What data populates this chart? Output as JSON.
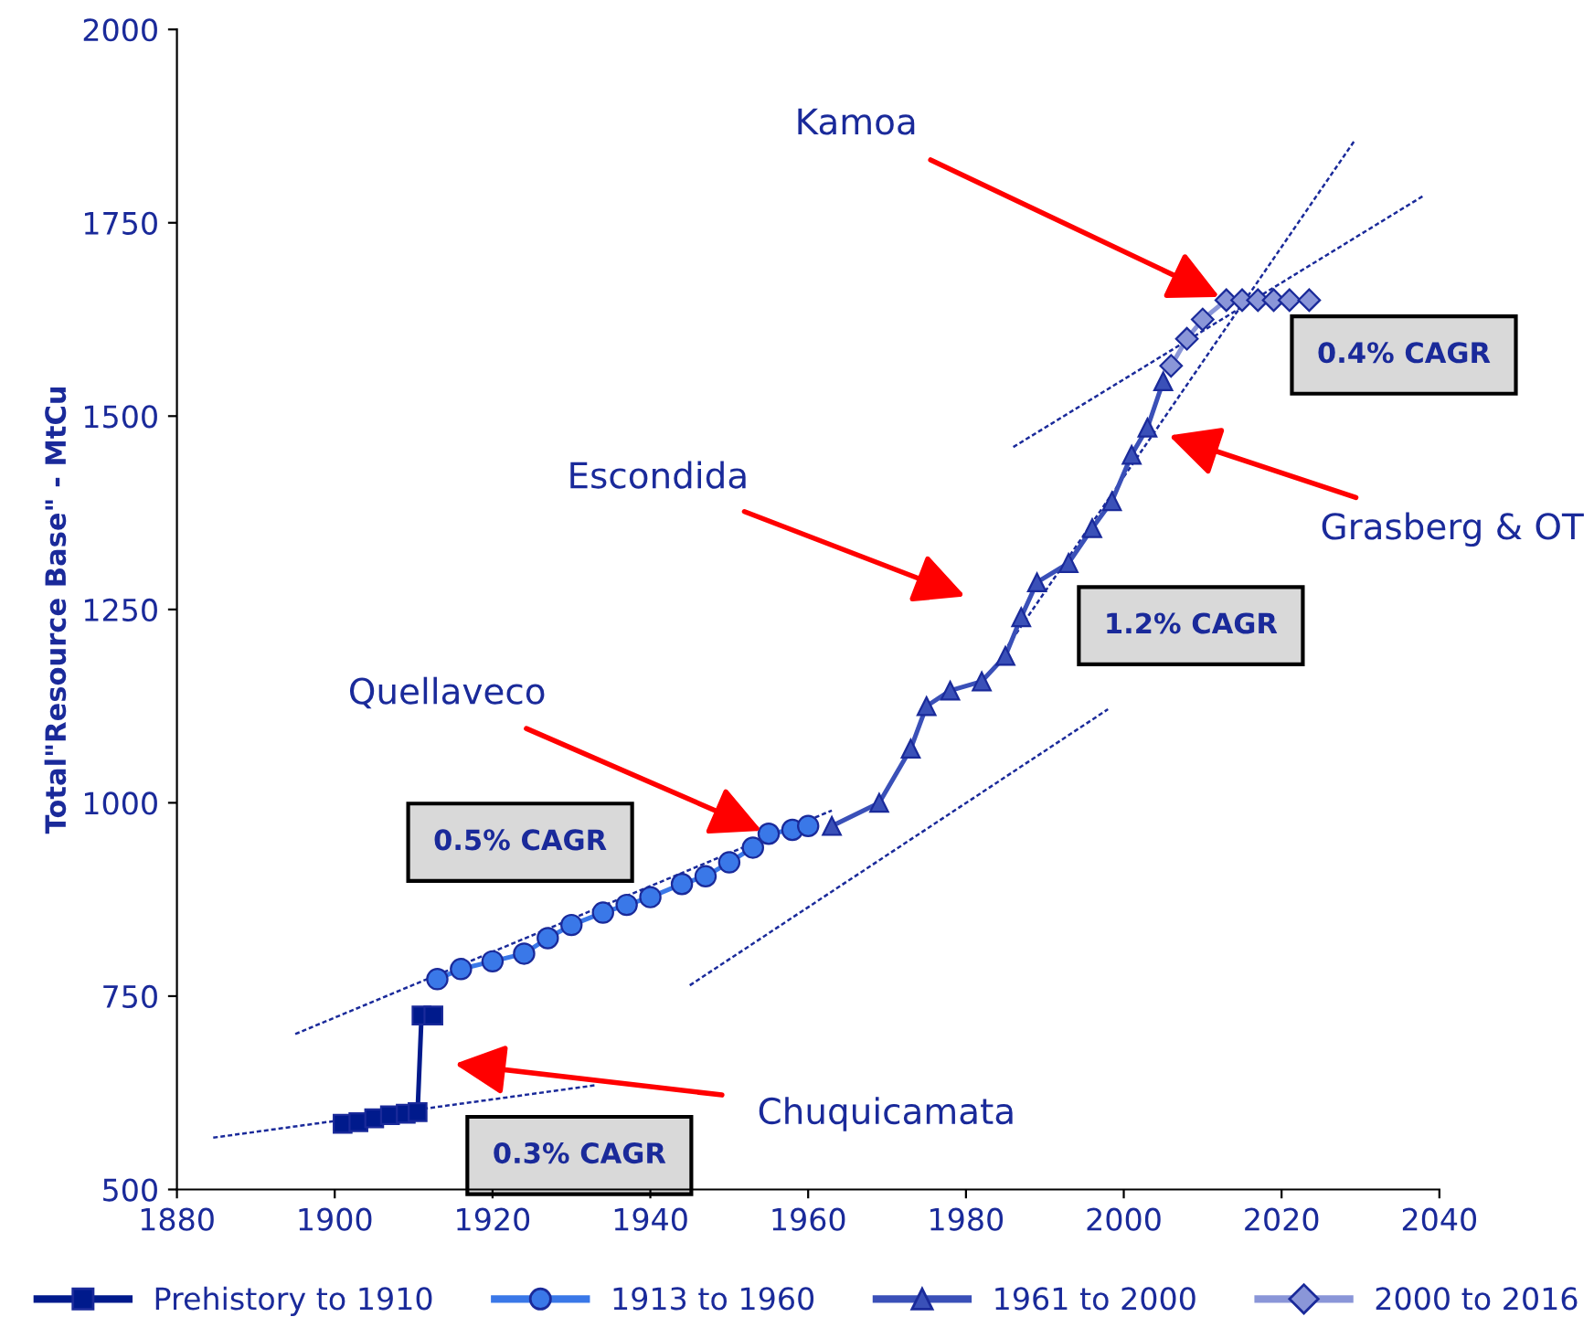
{
  "chart_data": {
    "type": "line",
    "ylabel": "Total\"Resource Base\" - MtCu",
    "xlim": [
      1880,
      2040
    ],
    "xticks": [
      1880,
      1900,
      1920,
      1940,
      1960,
      1980,
      2000,
      2020,
      2040
    ],
    "ylim": [
      500,
      2000
    ],
    "yticks": [
      500,
      750,
      1000,
      1250,
      1500,
      1750,
      2000
    ],
    "grid": false,
    "legend": "bottom",
    "line_style": "solid",
    "series": [
      {
        "name": "Prehistory to 1910",
        "color": "#001a8c",
        "marker": "square",
        "x": [
          1901,
          1903,
          1905,
          1907,
          1909,
          1910.5,
          1911,
          1912.5
        ],
        "values": [
          585,
          587,
          592,
          596,
          598,
          600,
          725,
          725
        ]
      },
      {
        "name": "1913 to 1960",
        "color": "#3a78e8",
        "marker": "circle",
        "x": [
          1913,
          1916,
          1920,
          1924,
          1927,
          1930,
          1934,
          1937,
          1940,
          1944,
          1947,
          1950,
          1953,
          1955,
          1958,
          1960
        ],
        "values": [
          772,
          785,
          795,
          805,
          825,
          842,
          858,
          868,
          878,
          895,
          905,
          923,
          942,
          960,
          965,
          970
        ]
      },
      {
        "name": "1961 to 2000",
        "color": "#3a50b8",
        "marker": "triangle",
        "x": [
          1963,
          1969,
          1973,
          1975,
          1978,
          1982,
          1985,
          1987,
          1989,
          1993,
          1996,
          1998.5,
          2001,
          2003,
          2005
        ],
        "values": [
          970,
          1000,
          1070,
          1125,
          1145,
          1157,
          1190,
          1240,
          1285,
          1310,
          1355,
          1390,
          1450,
          1485,
          1545
        ]
      },
      {
        "name": "2000 to 2016",
        "color": "#8a96d8",
        "marker": "diamond",
        "x": [
          2006,
          2008,
          2010,
          2013,
          2015,
          2017,
          2019,
          2021,
          2023.5
        ],
        "values": [
          1565,
          1600,
          1625,
          1650,
          1650,
          1650,
          1650,
          1650,
          1650
        ]
      },
      {
        "type": "line",
        "color": "#1a2a9a",
        "marker": "none",
        "line_style": "dashed",
        "x": [
          1884.6,
          1933.2
        ],
        "values": [
          567,
          635
        ]
      },
      {
        "type": "line",
        "color": "#1a2a9a",
        "marker": "none",
        "line_style": "dashed",
        "x": [
          1895,
          1963
        ],
        "values": [
          701,
          990
        ]
      },
      {
        "type": "line",
        "color": "#1a2a9a",
        "marker": "none",
        "line_style": "dashed",
        "x": [
          1945,
          1998
        ],
        "values": [
          764,
          1121
        ]
      },
      {
        "type": "line",
        "color": "#1a2a9a",
        "marker": "none",
        "line_style": "dashed",
        "x": [
          1986,
          2038
        ],
        "values": [
          1460,
          1785
        ]
      },
      {
        "type": "line",
        "color": "#1a2a9a",
        "marker": "none",
        "line_style": "dashed",
        "x": [
          1985.3,
          2029.3
        ],
        "values": [
          1203,
          1857
        ]
      }
    ],
    "annotations": [
      {
        "text": "Kamoa",
        "x": 2013,
        "y": 1650
      },
      "Escondida",
      "Grasberg & OT",
      {
        "text": "Quellaveco",
        "x": 1955,
        "y": 960
      },
      "Chuquicamata",
      "0.5% CAGR",
      "0.3% CAGR",
      "1.2% CAGR",
      "0.4% CAGR"
    ]
  }
}
